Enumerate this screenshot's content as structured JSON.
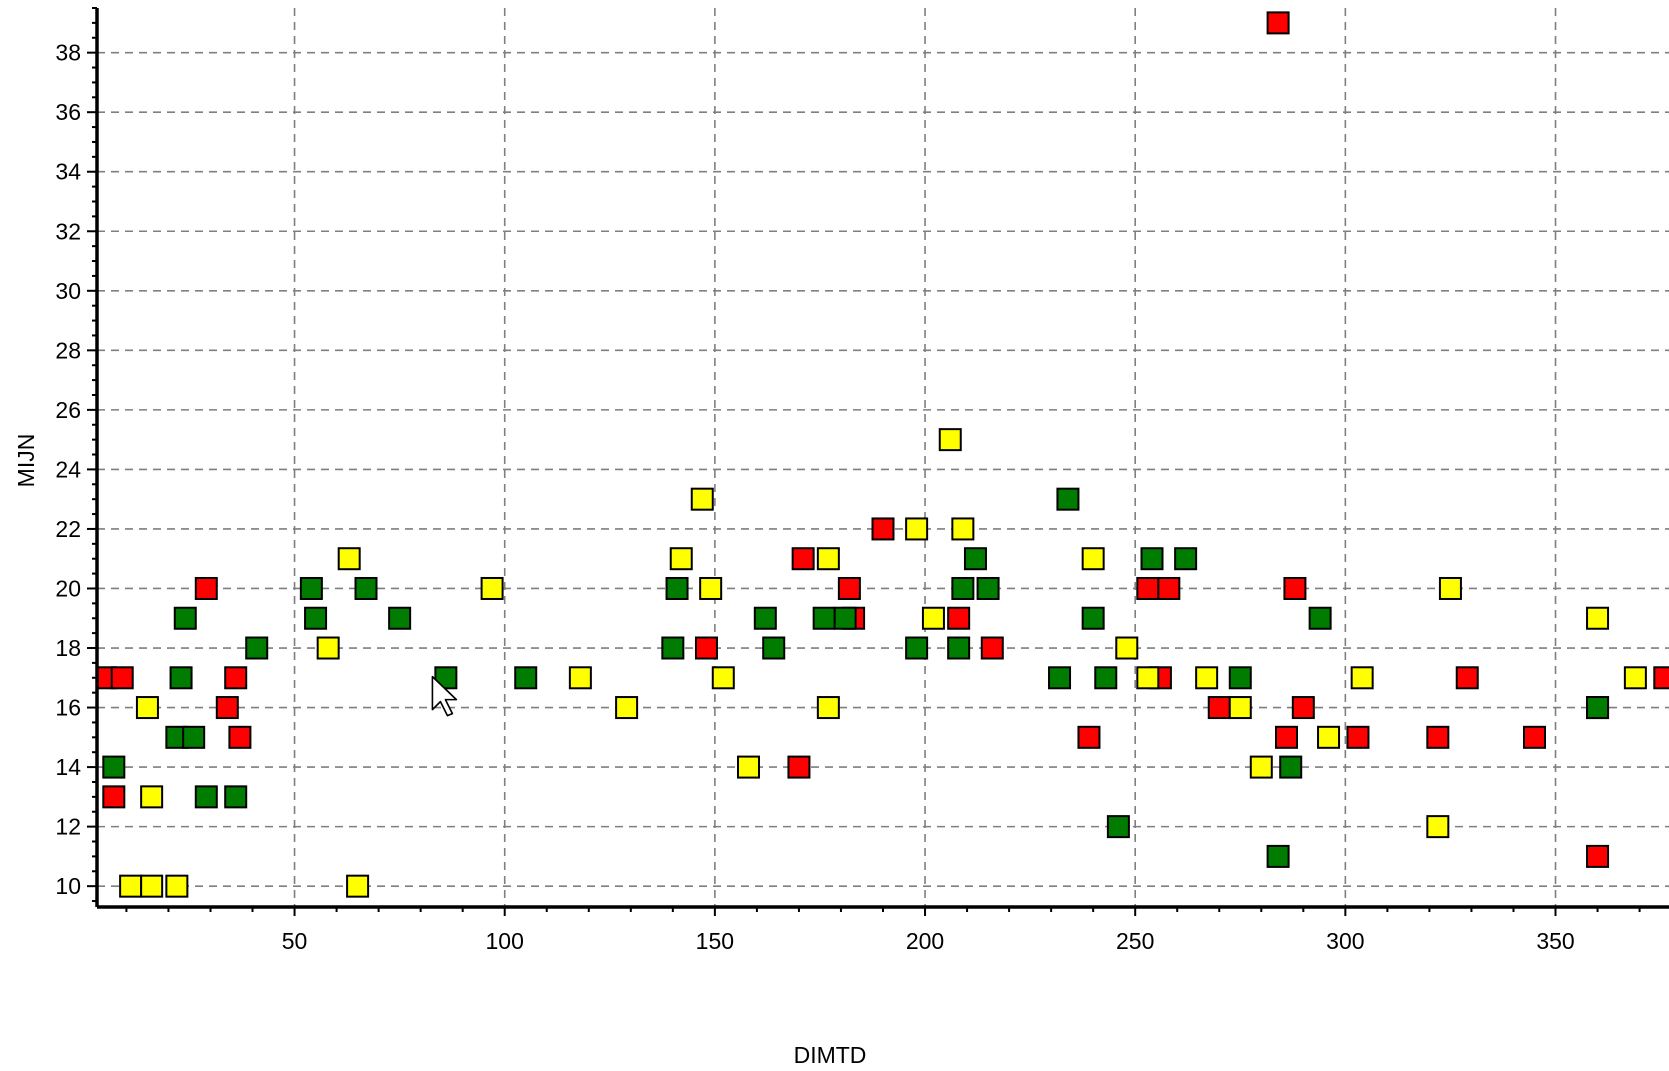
{
  "chart_data": {
    "type": "scatter",
    "title": "",
    "xlabel": "DIMTD",
    "ylabel": "MIJN",
    "xlim": [
      3,
      377
    ],
    "ylim": [
      9.3,
      39.5
    ],
    "x_ticks": [
      50,
      100,
      150,
      200,
      250,
      300,
      350
    ],
    "y_ticks": [
      10,
      12,
      14,
      16,
      18,
      20,
      22,
      24,
      26,
      28,
      30,
      32,
      34,
      36,
      38
    ],
    "grid": true,
    "legend": "none",
    "colors": {
      "red": "#ff0000",
      "green": "#007d00",
      "yellow": "#ffff00",
      "outline": "#000000",
      "grid": "#7f7f7f"
    },
    "series": [
      {
        "color": "#ff0000",
        "points": [
          [
            5,
            17
          ],
          [
            9,
            17
          ],
          [
            7,
            13
          ],
          [
            29,
            20
          ],
          [
            36,
            17
          ],
          [
            34,
            16
          ],
          [
            37,
            15
          ],
          [
            148,
            18
          ],
          [
            171,
            21
          ],
          [
            170,
            14
          ],
          [
            183,
            19
          ],
          [
            182,
            20
          ],
          [
            190,
            22
          ],
          [
            208,
            19
          ],
          [
            216,
            18
          ],
          [
            239,
            15
          ],
          [
            253,
            20
          ],
          [
            258,
            20
          ],
          [
            256,
            17
          ],
          [
            270,
            16
          ],
          [
            284,
            39
          ],
          [
            286,
            15
          ],
          [
            288,
            20
          ],
          [
            290,
            16
          ],
          [
            303,
            15
          ],
          [
            322,
            15
          ],
          [
            329,
            17
          ],
          [
            345,
            15
          ],
          [
            360,
            16
          ],
          [
            360,
            11
          ],
          [
            376,
            17
          ]
        ]
      },
      {
        "color": "#007d00",
        "points": [
          [
            7,
            14
          ],
          [
            22,
            15
          ],
          [
            26,
            15
          ],
          [
            29,
            13
          ],
          [
            23,
            17
          ],
          [
            24,
            19
          ],
          [
            36,
            13
          ],
          [
            41,
            18
          ],
          [
            54,
            20
          ],
          [
            55,
            19
          ],
          [
            67,
            20
          ],
          [
            75,
            19
          ],
          [
            86,
            17
          ],
          [
            105,
            17
          ],
          [
            141,
            20
          ],
          [
            140,
            18
          ],
          [
            162,
            19
          ],
          [
            164,
            18
          ],
          [
            176,
            19
          ],
          [
            181,
            19
          ],
          [
            198,
            18
          ],
          [
            208,
            18
          ],
          [
            209,
            20
          ],
          [
            212,
            21
          ],
          [
            215,
            20
          ],
          [
            232,
            17
          ],
          [
            234,
            23
          ],
          [
            240,
            19
          ],
          [
            243,
            17
          ],
          [
            246,
            12
          ],
          [
            254,
            21
          ],
          [
            262,
            21
          ],
          [
            275,
            17
          ],
          [
            284,
            11
          ],
          [
            287,
            14
          ],
          [
            294,
            19
          ],
          [
            360,
            16
          ]
        ]
      },
      {
        "color": "#ffff00",
        "points": [
          [
            15,
            16
          ],
          [
            16,
            13
          ],
          [
            11,
            10
          ],
          [
            16,
            10
          ],
          [
            22,
            10
          ],
          [
            58,
            18
          ],
          [
            63,
            21
          ],
          [
            65,
            10
          ],
          [
            97,
            20
          ],
          [
            118,
            17
          ],
          [
            129,
            16
          ],
          [
            147,
            23
          ],
          [
            142,
            21
          ],
          [
            149,
            20
          ],
          [
            152,
            17
          ],
          [
            158,
            14
          ],
          [
            177,
            21
          ],
          [
            177,
            16
          ],
          [
            198,
            22
          ],
          [
            202,
            19
          ],
          [
            206,
            25
          ],
          [
            209,
            22
          ],
          [
            240,
            21
          ],
          [
            248,
            18
          ],
          [
            253,
            17
          ],
          [
            267,
            17
          ],
          [
            275,
            16
          ],
          [
            280,
            14
          ],
          [
            296,
            15
          ],
          [
            304,
            17
          ],
          [
            322,
            12
          ],
          [
            325,
            20
          ],
          [
            360,
            19
          ],
          [
            369,
            17
          ]
        ]
      }
    ]
  },
  "cursor": {
    "icon": "arrow-cursor-icon",
    "x": 82.8,
    "y": 16.3
  }
}
